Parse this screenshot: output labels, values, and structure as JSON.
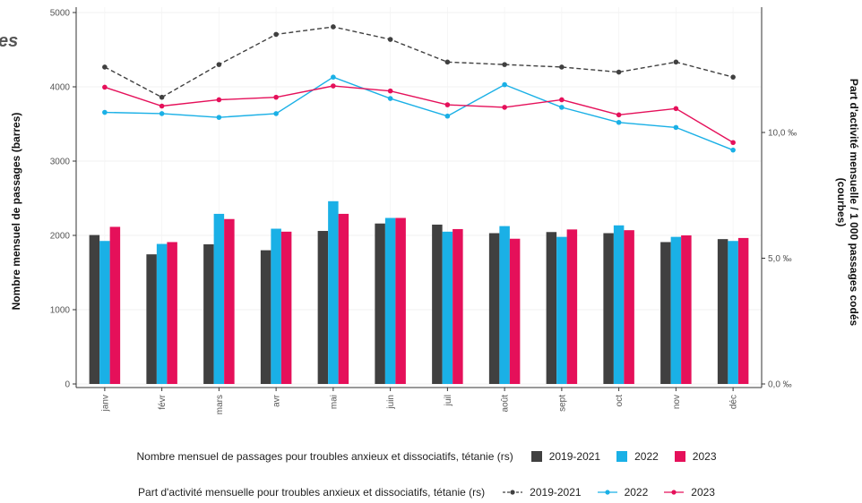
{
  "page": {
    "cut_title": "es"
  },
  "colors": {
    "s2019": "#404040",
    "s2022": "#1ab0e6",
    "s2023": "#e5105a",
    "dashed": "#404040"
  },
  "chart_data": {
    "type": "bar+line",
    "categories": [
      "janv",
      "févr",
      "mars",
      "avr",
      "mai",
      "juin",
      "juil",
      "août",
      "sept",
      "oct",
      "nov",
      "déc"
    ],
    "ylabel_left": "Nombre mensuel de passages (barres)",
    "ylabel_right": "Part d'activité mensuelle / 1 000 passages codés (courbes)",
    "ylim_left": [
      0,
      5000
    ],
    "yticks_left": [
      "0",
      "1000",
      "2000",
      "3000",
      "4000",
      "5000"
    ],
    "ylim_right": [
      0,
      15
    ],
    "yticks_right": [
      {
        "value": 0,
        "label": "0,0 ‰"
      },
      {
        "value": 5,
        "label": "5,0 ‰"
      },
      {
        "value": 10,
        "label": "10,0 ‰"
      }
    ],
    "grid": true,
    "bars": [
      {
        "name": "2019-2021",
        "values": [
          2005,
          1745,
          1880,
          1800,
          2060,
          2160,
          2145,
          2030,
          2045,
          2030,
          1910,
          1950
        ]
      },
      {
        "name": "2022",
        "values": [
          1925,
          1885,
          2290,
          2090,
          2460,
          2235,
          2050,
          2125,
          1980,
          2135,
          1980,
          1925
        ]
      },
      {
        "name": "2023",
        "values": [
          2115,
          1910,
          2220,
          2050,
          2290,
          2235,
          2085,
          1955,
          2080,
          2070,
          2000,
          1965
        ]
      }
    ],
    "lines": [
      {
        "name": "2019-2021",
        "style": "dashed",
        "values": [
          12.6,
          11.4,
          12.7,
          13.9,
          14.2,
          13.7,
          12.8,
          12.7,
          12.6,
          12.4,
          12.8,
          12.2
        ]
      },
      {
        "name": "2022",
        "style": "solid",
        "values": [
          10.8,
          10.75,
          10.6,
          10.75,
          12.2,
          11.35,
          10.65,
          11.9,
          11.0,
          10.4,
          10.2,
          9.3
        ]
      },
      {
        "name": "2023",
        "style": "solid",
        "values": [
          11.8,
          11.05,
          11.3,
          11.4,
          11.85,
          11.65,
          11.1,
          11.0,
          11.3,
          10.7,
          10.95,
          9.6
        ]
      }
    ],
    "legend_bars": {
      "title": "Nombre mensuel de passages pour troubles anxieux et dissociatifs, tétanie (rs)",
      "entries": [
        "2019-2021",
        "2022",
        "2023"
      ]
    },
    "legend_lines": {
      "title": "Part d'activité mensuelle pour troubles anxieux et dissociatifs, tétanie (rs)",
      "entries": [
        "2019-2021",
        "2022",
        "2023"
      ]
    }
  }
}
